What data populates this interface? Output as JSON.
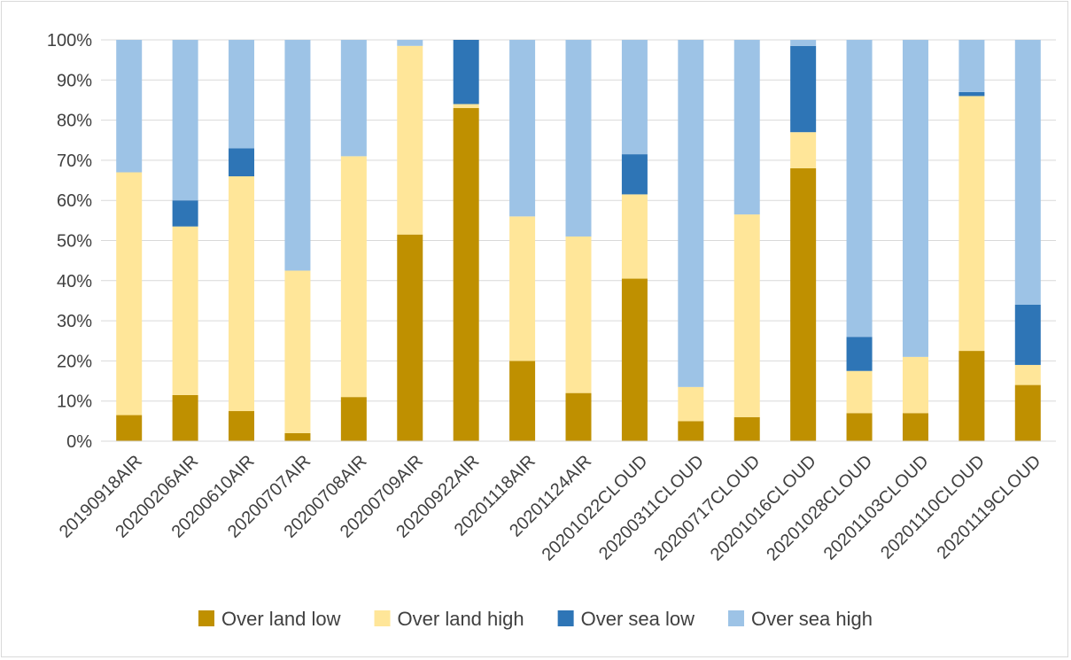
{
  "chart_data": {
    "type": "bar",
    "stacked": true,
    "percent_stacked": true,
    "categories": [
      "20190918AIR",
      "20200206AIR",
      "20200610AIR",
      "20200707AIR",
      "20200708AIR",
      "20200709AIR",
      "20200922AIR",
      "20201118AIR",
      "20201124AIR",
      "20201022CLOUD",
      "20200311CLOUD",
      "20200717CLOUD",
      "20201016CLOUD",
      "20201028CLOUD",
      "20201103CLOUD",
      "20201110CLOUD",
      "20201119CLOUD"
    ],
    "series": [
      {
        "name": "Over land low",
        "color": "#bf9000",
        "values": [
          6.5,
          11.5,
          7.5,
          2,
          11,
          51.5,
          83,
          20,
          12,
          40.5,
          5,
          6,
          68,
          7,
          7,
          22.5,
          14
        ]
      },
      {
        "name": "Over land high",
        "color": "#ffe699",
        "values": [
          60.5,
          42,
          58.5,
          40.5,
          60,
          47,
          1,
          36,
          39,
          21,
          8.5,
          50.5,
          9,
          10.5,
          14,
          63.5,
          5
        ]
      },
      {
        "name": "Over sea low",
        "color": "#2e75b6",
        "values": [
          0,
          6.5,
          7,
          0,
          0,
          0,
          16,
          0,
          0,
          10,
          0,
          0,
          21.5,
          8.5,
          0,
          1,
          15
        ]
      },
      {
        "name": "Over sea high",
        "color": "#9dc3e6",
        "values": [
          33,
          40,
          27,
          57.5,
          29,
          1.5,
          0,
          44,
          49,
          28.5,
          86.5,
          43.5,
          1.5,
          74,
          79,
          13,
          66
        ]
      }
    ],
    "yticks": [
      "0%",
      "10%",
      "20%",
      "30%",
      "40%",
      "50%",
      "60%",
      "70%",
      "80%",
      "90%",
      "100%"
    ],
    "ylim": [
      0,
      100
    ],
    "grid": true,
    "legend_position": "bottom"
  }
}
